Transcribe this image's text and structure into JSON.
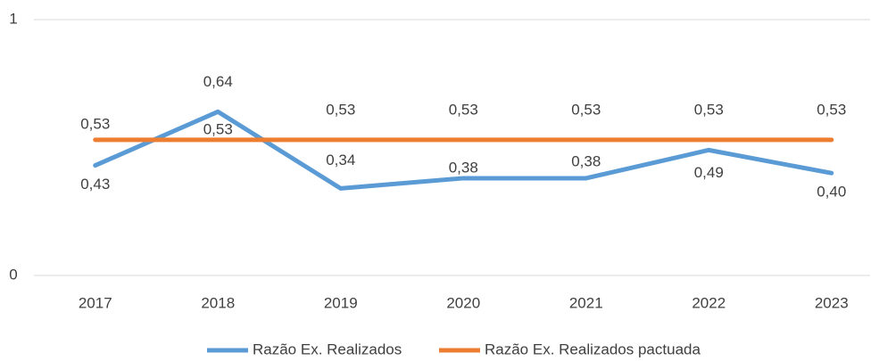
{
  "chart_data": {
    "type": "line",
    "categories": [
      "2017",
      "2018",
      "2019",
      "2020",
      "2021",
      "2022",
      "2023"
    ],
    "series": [
      {
        "name": "Razão Ex. Realizados",
        "color": "#5b9bd5",
        "values": [
          0.43,
          0.64,
          0.34,
          0.38,
          0.38,
          0.49,
          0.4
        ],
        "value_labels": [
          "0,43",
          "0,64",
          "0,34",
          "0,38",
          "0,38",
          "0,49",
          "0,40"
        ]
      },
      {
        "name": "Razão Ex. Realizados pactuada",
        "color": "#ed7d31",
        "values": [
          0.53,
          0.53,
          0.53,
          0.53,
          0.53,
          0.53,
          0.53
        ],
        "value_labels": [
          "0,53",
          "0,53",
          "0,53",
          "0,53",
          "0,53",
          "0,53",
          "0,53"
        ]
      }
    ],
    "ylim": [
      0,
      1
    ],
    "yticks": [
      0,
      1
    ],
    "grid": true,
    "legend": "bottom"
  }
}
